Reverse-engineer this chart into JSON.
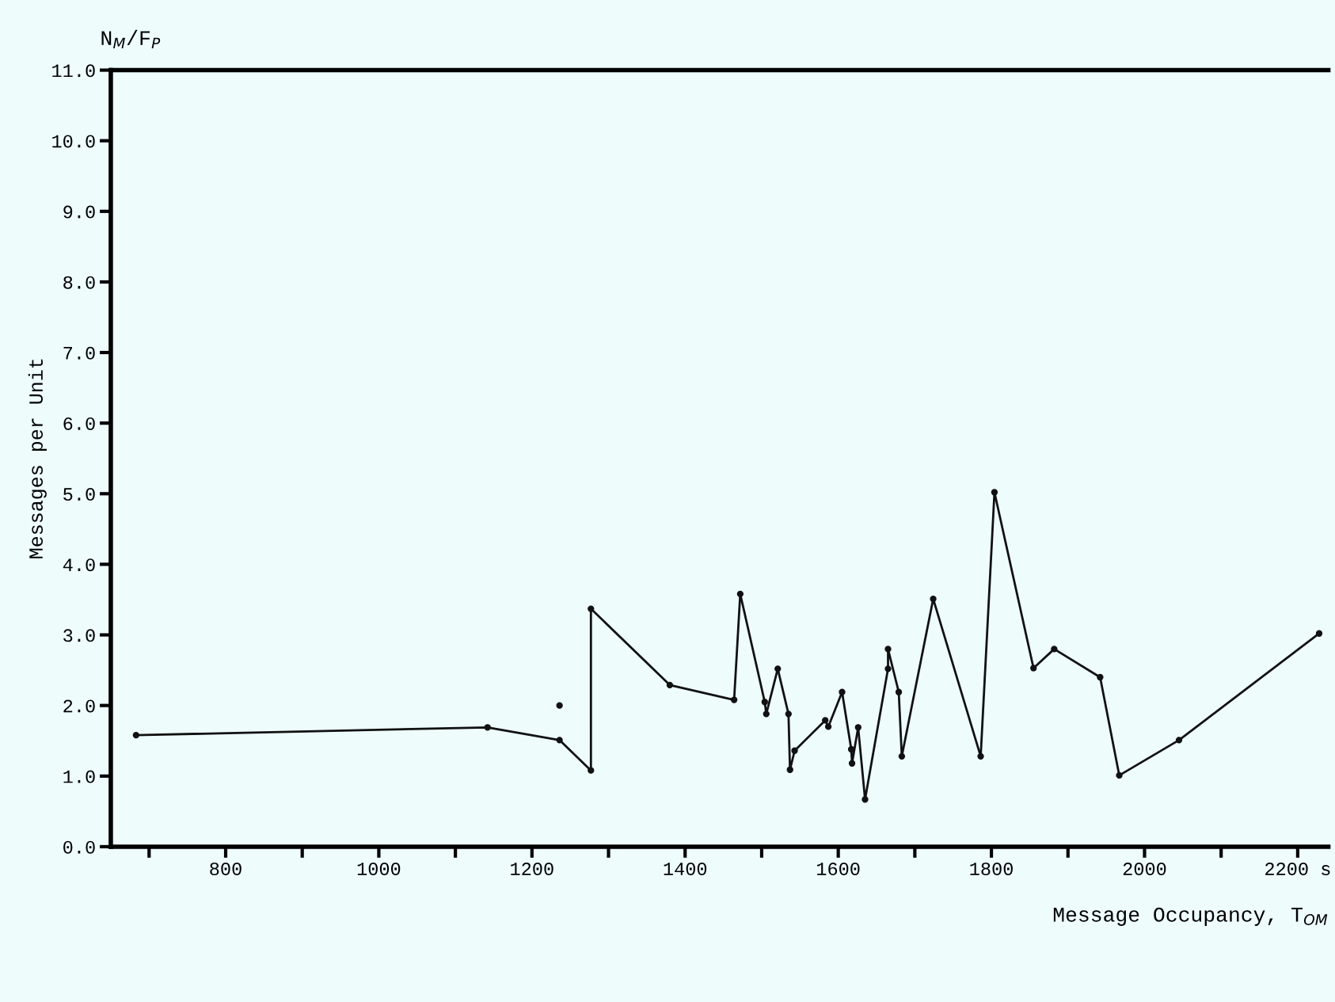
{
  "chart_data": {
    "type": "line",
    "ylabel": "Messages per Unit",
    "xlabel": "Message Occupancy, T$_{OM}$",
    "annotations": [
      "N$_{M}$/F$_{P}$"
    ],
    "series": [
      {
        "color": "#111111",
        "marker": "circle",
        "x": [
          683,
          1142,
          1236,
          1277,
          1277,
          1380,
          1464,
          1472,
          1504,
          1506,
          1521,
          1535,
          1537,
          1543,
          1583,
          1587,
          1605,
          1617,
          1618,
          1626,
          1635,
          1665,
          1665,
          1679,
          1683,
          1724,
          1786,
          1804,
          1855,
          1882,
          1942,
          1967,
          2045,
          2228
        ],
        "values": [
          1.58,
          1.69,
          1.51,
          1.08,
          3.37,
          2.29,
          2.08,
          3.58,
          2.05,
          1.88,
          2.52,
          1.88,
          1.09,
          1.36,
          1.79,
          1.7,
          2.19,
          1.38,
          1.18,
          1.69,
          0.67,
          2.52,
          2.8,
          2.19,
          1.28,
          3.51,
          1.28,
          5.02,
          2.53,
          2.8,
          2.4,
          1.01,
          1.51,
          3.02
        ]
      },
      {
        "type": "scatter",
        "color": "#111111",
        "marker": "circle",
        "x": [
          1236
        ],
        "values": [
          2.0
        ]
      }
    ],
    "xlim": [
      650,
      2240
    ],
    "ylim": [
      0,
      11
    ],
    "xticks": [
      {
        "value": 700,
        "label": null
      },
      800,
      {
        "value": 900,
        "label": null
      },
      1000,
      {
        "value": 1100,
        "label": null
      },
      1200,
      {
        "value": 1300,
        "label": null
      },
      1400,
      {
        "value": 1500,
        "label": null
      },
      1600,
      {
        "value": 1700,
        "label": null
      },
      1800,
      {
        "value": 1900,
        "label": null
      },
      2000,
      {
        "value": 2100,
        "label": null
      },
      {
        "value": 2200,
        "label": "2200 s"
      }
    ],
    "yticks": [
      {
        "value": 0,
        "label": "0.0"
      },
      {
        "value": 1,
        "label": "1.0"
      },
      {
        "value": 2,
        "label": "2.0"
      },
      {
        "value": 3,
        "label": "3.0"
      },
      {
        "value": 4,
        "label": "4.0"
      },
      {
        "value": 5,
        "label": "5.0"
      },
      {
        "value": 6,
        "label": "6.0"
      },
      {
        "value": 7,
        "label": "7.0"
      },
      {
        "value": 8,
        "label": "8.0"
      },
      {
        "value": 9,
        "label": "9.0"
      },
      {
        "value": 10,
        "label": "10.0"
      },
      {
        "value": 11,
        "label": "11.0"
      }
    ],
    "grid": false,
    "legend": false
  }
}
